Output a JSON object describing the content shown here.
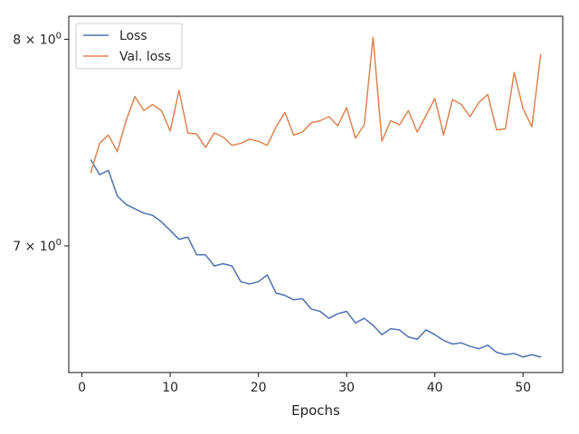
{
  "chart_data": {
    "type": "line",
    "title": "",
    "xlabel": "Epochs",
    "ylabel": "",
    "yscale": "log",
    "xlim": [
      -1.5,
      54.5
    ],
    "ylim": [
      6.45,
      8.12
    ],
    "grid": false,
    "legend_position": "top-left",
    "x_ticks": [
      0,
      10,
      20,
      30,
      40,
      50
    ],
    "x_tick_labels": [
      "0",
      "10",
      "20",
      "30",
      "40",
      "50"
    ],
    "y_ticks": [
      7,
      8
    ],
    "y_tick_labels": [
      {
        "base": "7 × 10",
        "exp": "0"
      },
      {
        "base": "8 × 10",
        "exp": "0"
      }
    ],
    "x": [
      1,
      2,
      3,
      4,
      5,
      6,
      7,
      8,
      9,
      10,
      11,
      12,
      13,
      14,
      15,
      16,
      17,
      18,
      19,
      20,
      21,
      22,
      23,
      24,
      25,
      26,
      27,
      28,
      29,
      30,
      31,
      32,
      33,
      34,
      35,
      36,
      37,
      38,
      39,
      40,
      41,
      42,
      43,
      44,
      45,
      46,
      47,
      48,
      49,
      50,
      51,
      52
    ],
    "series": [
      {
        "name": "Loss",
        "color": "#4c72b0",
        "values": [
          7.4,
          7.33,
          7.35,
          7.23,
          7.19,
          7.17,
          7.15,
          7.14,
          7.11,
          7.07,
          7.03,
          7.04,
          6.96,
          6.96,
          6.91,
          6.92,
          6.91,
          6.84,
          6.83,
          6.84,
          6.87,
          6.79,
          6.78,
          6.76,
          6.765,
          6.72,
          6.71,
          6.68,
          6.7,
          6.71,
          6.66,
          6.68,
          6.65,
          6.61,
          6.635,
          6.63,
          6.6,
          6.59,
          6.63,
          6.61,
          6.585,
          6.57,
          6.575,
          6.56,
          6.55,
          6.565,
          6.535,
          6.525,
          6.53,
          6.515,
          6.525,
          6.515
        ]
      },
      {
        "name": "Val. loss",
        "color": "#dd8452",
        "values": [
          7.34,
          7.48,
          7.52,
          7.44,
          7.59,
          7.71,
          7.64,
          7.67,
          7.64,
          7.54,
          7.74,
          7.53,
          7.525,
          7.46,
          7.53,
          7.51,
          7.47,
          7.48,
          7.5,
          7.49,
          7.47,
          7.56,
          7.63,
          7.52,
          7.535,
          7.58,
          7.59,
          7.61,
          7.565,
          7.655,
          7.505,
          7.57,
          8.01,
          7.49,
          7.59,
          7.57,
          7.64,
          7.535,
          7.615,
          7.7,
          7.52,
          7.695,
          7.67,
          7.61,
          7.68,
          7.72,
          7.545,
          7.55,
          7.83,
          7.65,
          7.56,
          7.92
        ]
      }
    ]
  }
}
